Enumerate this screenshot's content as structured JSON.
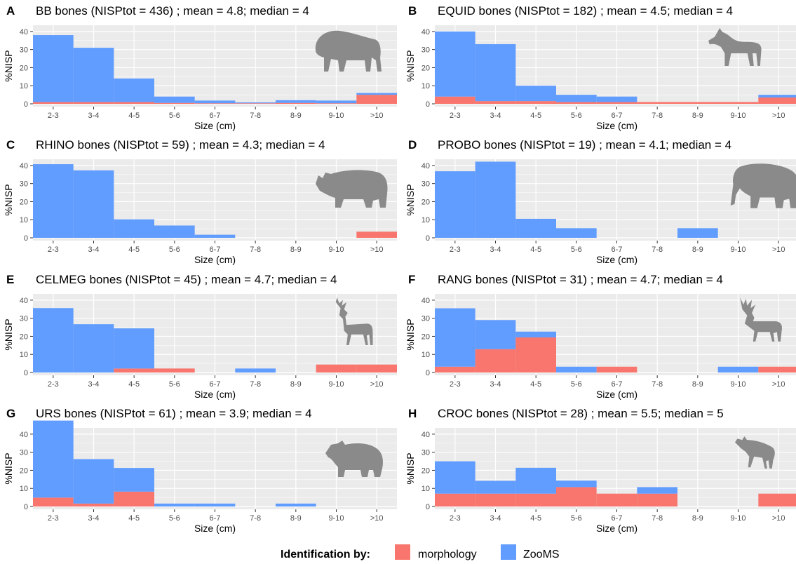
{
  "colors": {
    "morphology": "#F8766D",
    "zooms": "#619CFF",
    "panel_bg": "#EBEBEB",
    "grid": "#FFFFFF",
    "silhouette": "#8a8a8a"
  },
  "legend": {
    "title": "Identification by:",
    "items": [
      "morphology",
      "ZooMS"
    ]
  },
  "chart_data": [
    {
      "letter": "A",
      "title": "BB bones (NISPtot = 436) ; mean = 4.8; median = 4",
      "type": "bar",
      "stacked": true,
      "xlabel": "Size (cm)",
      "ylabel": "%NISP",
      "ylim": [
        0,
        45
      ],
      "yticks": [
        0,
        10,
        20,
        30,
        40
      ],
      "grid": true,
      "categories": [
        "2-3",
        "3-4",
        "4-5",
        "5-6",
        "6-7",
        "7-8",
        "8-9",
        "9-10",
        ">10"
      ],
      "series": [
        {
          "name": "morphology",
          "values": [
            1,
            1,
            1,
            0.5,
            0.3,
            0.3,
            0.5,
            0.3,
            5
          ]
        },
        {
          "name": "ZooMS",
          "values": [
            37,
            30,
            13,
            3.5,
            1.5,
            0.5,
            1.5,
            1.5,
            1
          ]
        }
      ],
      "icon": "bison-silhouette-icon"
    },
    {
      "letter": "B",
      "title": "EQUID bones (NISPtot = 182) ; mean = 4.5; median = 4",
      "type": "bar",
      "stacked": true,
      "xlabel": "Size (cm)",
      "ylabel": "%NISP",
      "ylim": [
        0,
        45
      ],
      "yticks": [
        0,
        10,
        20,
        30,
        40
      ],
      "grid": true,
      "categories": [
        "2-3",
        "3-4",
        "4-5",
        "5-6",
        "6-7",
        "7-8",
        "8-9",
        "9-10",
        ">10"
      ],
      "series": [
        {
          "name": "morphology",
          "values": [
            4,
            1.5,
            1.5,
            1,
            1,
            1,
            1,
            1,
            3.5
          ]
        },
        {
          "name": "ZooMS",
          "values": [
            36,
            31.5,
            8.5,
            4,
            3,
            0,
            0,
            0,
            1.5
          ]
        }
      ],
      "icon": "horse-silhouette-icon"
    },
    {
      "letter": "C",
      "title": "RHINO bones (NISPtot = 59) ; mean = 4.3; median = 4",
      "type": "bar",
      "stacked": true,
      "xlabel": "Size (cm)",
      "ylabel": "%NISP",
      "ylim": [
        0,
        45
      ],
      "yticks": [
        0,
        10,
        20,
        30,
        40
      ],
      "grid": true,
      "categories": [
        "2-3",
        "3-4",
        "4-5",
        "5-6",
        "6-7",
        "7-8",
        "8-9",
        "9-10",
        ">10"
      ],
      "series": [
        {
          "name": "morphology",
          "values": [
            0,
            0,
            0,
            0,
            0,
            0,
            0,
            0,
            3.4
          ]
        },
        {
          "name": "ZooMS",
          "values": [
            40.7,
            37.3,
            10.2,
            6.8,
            1.7,
            0,
            0,
            0,
            0
          ]
        }
      ],
      "icon": "rhino-silhouette-icon"
    },
    {
      "letter": "D",
      "title": "PROBO bones (NISPtot = 19) ; mean = 4.1; median = 4",
      "type": "bar",
      "stacked": true,
      "xlabel": "Size (cm)",
      "ylabel": "%NISP",
      "ylim": [
        0,
        45
      ],
      "yticks": [
        0,
        10,
        20,
        30,
        40
      ],
      "grid": true,
      "categories": [
        "2-3",
        "3-4",
        "4-5",
        "5-6",
        "6-7",
        "7-8",
        "8-9",
        "9-10",
        ">10"
      ],
      "series": [
        {
          "name": "morphology",
          "values": [
            0,
            0,
            0,
            0,
            0,
            0,
            0,
            0,
            0
          ]
        },
        {
          "name": "ZooMS",
          "values": [
            36.8,
            42.1,
            10.5,
            5.3,
            0,
            0,
            5.3,
            0,
            0
          ]
        }
      ],
      "icon": "elephant-silhouette-icon"
    },
    {
      "letter": "E",
      "title": "CELMEG bones (NISPtot = 45) ; mean = 4.7; median = 4",
      "type": "bar",
      "stacked": true,
      "xlabel": "Size (cm)",
      "ylabel": "%NISP",
      "ylim": [
        0,
        45
      ],
      "yticks": [
        0,
        10,
        20,
        30,
        40
      ],
      "grid": true,
      "categories": [
        "2-3",
        "3-4",
        "4-5",
        "5-6",
        "6-7",
        "7-8",
        "8-9",
        "9-10",
        ">10"
      ],
      "series": [
        {
          "name": "morphology",
          "values": [
            0,
            0,
            2.2,
            2.2,
            0,
            0,
            0,
            4.4,
            4.4
          ]
        },
        {
          "name": "ZooMS",
          "values": [
            35.6,
            26.7,
            22.2,
            0,
            0,
            2.2,
            0,
            0,
            0
          ]
        }
      ],
      "icon": "deer-silhouette-icon"
    },
    {
      "letter": "F",
      "title": "RANG bones (NISPtot = 31) ; mean = 4.7; median = 4",
      "type": "bar",
      "stacked": true,
      "xlabel": "Size (cm)",
      "ylabel": "%NISP",
      "ylim": [
        0,
        45
      ],
      "yticks": [
        0,
        10,
        20,
        30,
        40
      ],
      "grid": true,
      "categories": [
        "2-3",
        "3-4",
        "4-5",
        "5-6",
        "6-7",
        "7-8",
        "8-9",
        "9-10",
        ">10"
      ],
      "series": [
        {
          "name": "morphology",
          "values": [
            3.2,
            12.9,
            19.4,
            0,
            3.2,
            0,
            0,
            0,
            3.2
          ]
        },
        {
          "name": "ZooMS",
          "values": [
            32.3,
            16.1,
            3.2,
            3.2,
            0,
            0,
            0,
            3.2,
            0
          ]
        }
      ],
      "icon": "reindeer-silhouette-icon"
    },
    {
      "letter": "G",
      "title": "URS bones (NISPtot = 61) ; mean = 3.9; median = 4",
      "type": "bar",
      "stacked": true,
      "xlabel": "Size (cm)",
      "ylabel": "%NISP",
      "ylim": [
        0,
        45
      ],
      "yticks": [
        0,
        10,
        20,
        30,
        40
      ],
      "grid": true,
      "categories": [
        "2-3",
        "3-4",
        "4-5",
        "5-6",
        "6-7",
        "7-8",
        "8-9",
        "9-10",
        ">10"
      ],
      "series": [
        {
          "name": "morphology",
          "values": [
            4.9,
            1.6,
            8.2,
            0,
            0,
            0,
            0,
            0,
            0
          ]
        },
        {
          "name": "ZooMS",
          "values": [
            42.6,
            24.6,
            13.1,
            1.6,
            1.6,
            0,
            1.6,
            0,
            0
          ]
        }
      ],
      "icon": "bear-silhouette-icon"
    },
    {
      "letter": "H",
      "title": "CROC bones (NISPtot = 28) ; mean = 5.5; median = 5",
      "type": "bar",
      "stacked": true,
      "xlabel": "Size (cm)",
      "ylabel": "%NISP",
      "ylim": [
        0,
        45
      ],
      "yticks": [
        0,
        10,
        20,
        30,
        40
      ],
      "grid": true,
      "categories": [
        "2-3",
        "3-4",
        "4-5",
        "5-6",
        "6-7",
        "7-8",
        "8-9",
        "9-10",
        ">10"
      ],
      "series": [
        {
          "name": "morphology",
          "values": [
            7.1,
            7.1,
            7.1,
            10.7,
            7.1,
            7.1,
            0,
            0,
            7.1
          ]
        },
        {
          "name": "ZooMS",
          "values": [
            17.9,
            7.1,
            14.3,
            3.6,
            0,
            3.6,
            0,
            0,
            0
          ]
        }
      ],
      "icon": "hyena-silhouette-icon"
    }
  ]
}
